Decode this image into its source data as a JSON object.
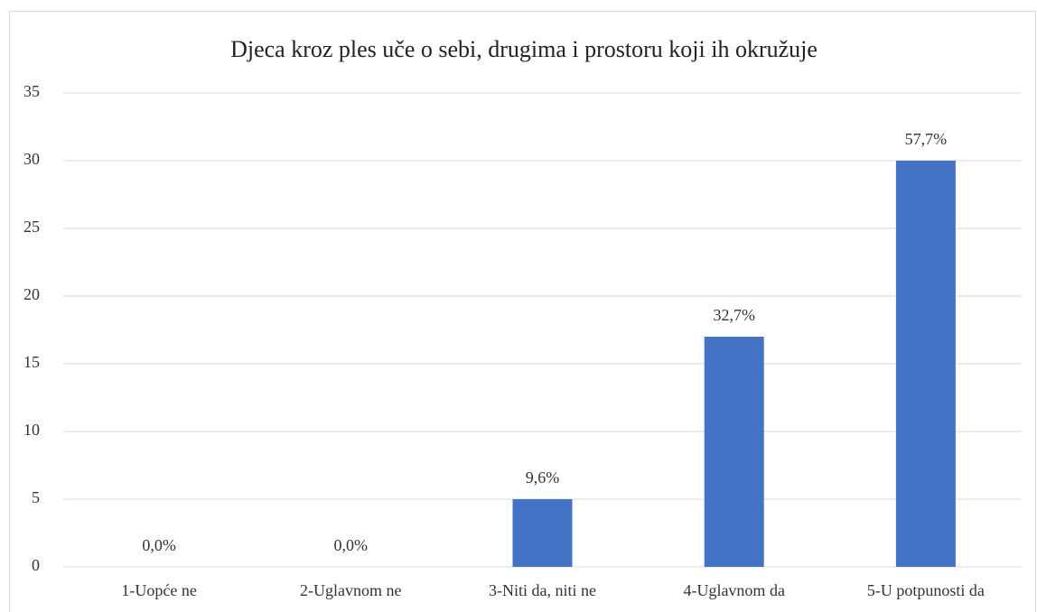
{
  "chart_data": {
    "type": "bar",
    "title": "Djeca kroz ples uče o sebi, drugima i prostoru koji ih okružuje",
    "categories": [
      "1-Uopće ne",
      "2-Uglavnom ne",
      "3-Niti da, niti ne",
      "4-Uglavnom da",
      "5-U potpunosti da"
    ],
    "values": [
      0,
      0,
      5,
      17,
      30
    ],
    "data_labels": [
      "0,0%",
      "0,0%",
      "9,6%",
      "32,7%",
      "57,7%"
    ],
    "color": "#4472c4",
    "ylim": [
      0,
      35
    ],
    "yticks": [
      0,
      5,
      10,
      15,
      20,
      25,
      30,
      35
    ],
    "grid": true
  }
}
